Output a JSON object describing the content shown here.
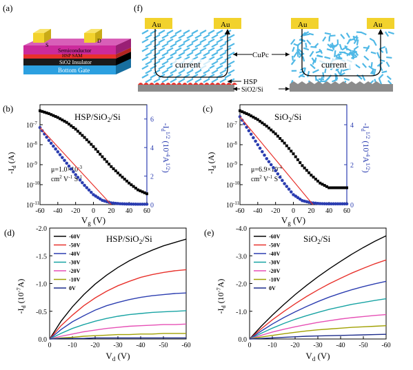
{
  "panel_a": {
    "letter": "(a)",
    "layers": [
      "Semiconductor",
      "HSP SAM",
      "SiO2 Insulator",
      "Bottom Gate"
    ],
    "source": "S",
    "drain": "D",
    "colors": {
      "semiconductor": "#cc2a9b",
      "sam": "#e0e0e0",
      "insulator": "#1a1a1a",
      "gate": "#2ca0e0",
      "electrode": "#f2d22c"
    }
  },
  "panel_f": {
    "letter": "(f)",
    "electrode": "Au",
    "current": "current",
    "cupc": "CuPc",
    "hsp": "HSP",
    "substrate": "SiO2/Si",
    "colors": {
      "molecule": "#4fb8e6",
      "hsp": "#e8312b",
      "substrate": "#8c8c8c",
      "electrode": "#f2d22c"
    }
  },
  "transfer_common": {
    "xlabel": "Vg (V)"
  },
  "transfer_panels": [
    {
      "letter": "(b)",
      "label": "HSP/SiO2/Si",
      "mu": "μ=1.0×10-3",
      "unit": "cm2 V-1 S-1",
      "yright_max": 6
    },
    {
      "letter": "(c)",
      "label": "SiO2/Si",
      "mu": "μ=6.9×10-4",
      "unit": "cm2 V-1 S-1",
      "yright_max": 4
    }
  ],
  "output_common": {
    "xlabel": "Vd (V)",
    "ylabel": "-Id (10-7A)"
  },
  "output_panels": [
    {
      "letter": "(d)",
      "label": "HSP/SiO2/Si",
      "ymax": 2.0
    },
    {
      "letter": "(e)",
      "label": "SiO2/Si",
      "ymax": 4.0
    }
  ],
  "chart_data": [
    {
      "type": "scatter",
      "panel": "(b)",
      "title": "HSP/SiO2/Si",
      "xlabel": "Vg (V)",
      "ylabel": "-Id (A)",
      "y2label": "-Id1/2 (10-4A1/2)",
      "xlim": [
        -60,
        60
      ],
      "ylim": [
        1e-11,
        1e-06
      ],
      "y2lim": [
        0,
        7
      ],
      "yscale": "log",
      "xticks": [
        -60,
        -40,
        -20,
        0,
        20,
        40,
        60
      ],
      "yticks": [
        "10-11",
        "10-10",
        "10-9",
        "10-8",
        "10-7"
      ],
      "y2ticks": [
        0,
        2,
        4,
        6
      ],
      "series": [
        {
          "name": "-Id",
          "axis": "left",
          "color": "#000000",
          "x": [
            -60,
            -50,
            -40,
            -30,
            -20,
            -10,
            0,
            10,
            20,
            30,
            40,
            50,
            60
          ],
          "y": [
            5e-07,
            3.6e-07,
            2.3e-07,
            1.3e-07,
            6e-08,
            2.3e-08,
            8e-09,
            2.5e-09,
            8e-10,
            3e-10,
            1.2e-10,
            5.5e-11,
            3.5e-11
          ]
        },
        {
          "name": "-Id1/2",
          "axis": "right",
          "color": "#2b3db0",
          "x": [
            -60,
            -50,
            -40,
            -30,
            -20,
            -10,
            0,
            10,
            20,
            30,
            40,
            50,
            60
          ],
          "y": [
            5.4,
            4.5,
            3.7,
            2.9,
            2.1,
            1.35,
            0.7,
            0.3,
            0.12,
            0.06,
            0.04,
            0.03,
            0.03
          ]
        },
        {
          "name": "fit",
          "axis": "right",
          "color": "#e8312b",
          "x": [
            -60,
            20
          ],
          "y": [
            5.4,
            0
          ]
        }
      ],
      "annotations": [
        "μ=1.0×10-3",
        "cm2 V-1 S-1"
      ]
    },
    {
      "type": "scatter",
      "panel": "(c)",
      "title": "SiO2/Si",
      "xlabel": "Vg (V)",
      "ylabel": "-Id (A)",
      "y2label": "-Id1/2 (10-4A1/2)",
      "xlim": [
        -60,
        60
      ],
      "ylim": [
        1e-11,
        1e-06
      ],
      "y2lim": [
        0,
        5
      ],
      "yscale": "log",
      "xticks": [
        -60,
        -40,
        -20,
        0,
        20,
        40,
        60
      ],
      "yticks": [
        "10-11",
        "10-10",
        "10-9",
        "10-8",
        "10-7"
      ],
      "y2ticks": [
        0,
        2,
        4
      ],
      "series": [
        {
          "name": "-Id",
          "axis": "left",
          "color": "#000000",
          "x": [
            -60,
            -50,
            -40,
            -30,
            -20,
            -10,
            0,
            10,
            20,
            30,
            40,
            50,
            60
          ],
          "y": [
            5e-07,
            3.2e-07,
            1.8e-07,
            8.5e-08,
            3.5e-08,
            1.2e-08,
            3.5e-09,
            9e-10,
            3e-10,
            1.2e-10,
            7e-11,
            7e-11,
            7e-11
          ]
        },
        {
          "name": "-Id1/2",
          "axis": "right",
          "color": "#2b3db0",
          "x": [
            -60,
            -50,
            -40,
            -30,
            -20,
            -10,
            0,
            10,
            20,
            30,
            40,
            50,
            60
          ],
          "y": [
            4.4,
            3.7,
            3.0,
            2.3,
            1.7,
            1.05,
            0.5,
            0.2,
            0.09,
            0.05,
            0.04,
            0.04,
            0.04
          ]
        },
        {
          "name": "fit",
          "axis": "right",
          "color": "#e8312b",
          "x": [
            -60,
            22
          ],
          "y": [
            4.4,
            0
          ]
        }
      ],
      "annotations": [
        "μ=6.9×10-4",
        "cm2 V-1 S-1"
      ]
    },
    {
      "type": "line",
      "panel": "(d)",
      "title": "HSP/SiO2/Si",
      "xlabel": "Vd (V)",
      "ylabel": "-Id (10-7A)",
      "xlim": [
        0,
        -60
      ],
      "ylim": [
        0,
        -2.0
      ],
      "xticks": [
        0,
        -10,
        -20,
        -30,
        -40,
        -50,
        -60
      ],
      "yticks": [
        "0.0",
        "-0.5",
        "-1.0",
        "-1.5",
        "-2.0"
      ],
      "legend": "top-left",
      "x": [
        0,
        -5,
        -10,
        -15,
        -20,
        -25,
        -30,
        -35,
        -40,
        -45,
        -50,
        -55,
        -60
      ],
      "series": [
        {
          "name": "-60V",
          "color": "#000000",
          "values": [
            0,
            -0.32,
            -0.58,
            -0.8,
            -0.99,
            -1.15,
            -1.29,
            -1.41,
            -1.51,
            -1.6,
            -1.68,
            -1.74,
            -1.8
          ]
        },
        {
          "name": "-50V",
          "color": "#e8312b",
          "values": [
            0,
            -0.24,
            -0.43,
            -0.6,
            -0.74,
            -0.86,
            -0.96,
            -1.04,
            -1.11,
            -1.16,
            -1.2,
            -1.23,
            -1.25
          ]
        },
        {
          "name": "-40V",
          "color": "#2b3db0",
          "values": [
            0,
            -0.17,
            -0.31,
            -0.42,
            -0.52,
            -0.6,
            -0.66,
            -0.71,
            -0.75,
            -0.78,
            -0.8,
            -0.82,
            -0.83
          ]
        },
        {
          "name": "-30V",
          "color": "#17a3a3",
          "values": [
            0,
            -0.1,
            -0.19,
            -0.26,
            -0.32,
            -0.37,
            -0.41,
            -0.44,
            -0.46,
            -0.48,
            -0.49,
            -0.5,
            -0.51
          ]
        },
        {
          "name": "-20V",
          "color": "#e64fb5",
          "values": [
            0,
            -0.05,
            -0.09,
            -0.13,
            -0.16,
            -0.19,
            -0.21,
            -0.23,
            -0.24,
            -0.25,
            -0.26,
            -0.26,
            -0.27
          ]
        },
        {
          "name": "-10V",
          "color": "#a0a000",
          "values": [
            0,
            -0.02,
            -0.03,
            -0.05,
            -0.06,
            -0.07,
            -0.08,
            -0.08,
            -0.09,
            -0.09,
            -0.1,
            -0.1,
            -0.1
          ]
        },
        {
          "name": "0V",
          "color": "#1a2a8a",
          "values": [
            0,
            -0.01,
            -0.01,
            -0.01,
            -0.02,
            -0.02,
            -0.02,
            -0.02,
            -0.02,
            -0.02,
            -0.02,
            -0.02,
            -0.02
          ]
        }
      ]
    },
    {
      "type": "line",
      "panel": "(e)",
      "title": "SiO2/Si",
      "xlabel": "Vd (V)",
      "ylabel": "-Id (10-7A)",
      "xlim": [
        0,
        -60
      ],
      "ylim": [
        0,
        -4.0
      ],
      "xticks": [
        0,
        -10,
        -20,
        -30,
        -40,
        -50,
        -60
      ],
      "yticks": [
        "0.0",
        "-1.0",
        "-2.0",
        "-3.0",
        "-4.0"
      ],
      "legend": "top-left",
      "x": [
        0,
        -5,
        -10,
        -15,
        -20,
        -25,
        -30,
        -35,
        -40,
        -45,
        -50,
        -55,
        -60
      ],
      "series": [
        {
          "name": "-60V",
          "color": "#000000",
          "values": [
            0,
            -0.45,
            -0.86,
            -1.24,
            -1.6,
            -1.93,
            -2.24,
            -2.53,
            -2.8,
            -3.06,
            -3.3,
            -3.52,
            -3.72
          ]
        },
        {
          "name": "-50V",
          "color": "#e8312b",
          "values": [
            0,
            -0.36,
            -0.69,
            -0.99,
            -1.27,
            -1.53,
            -1.77,
            -1.99,
            -2.19,
            -2.38,
            -2.55,
            -2.71,
            -2.85
          ]
        },
        {
          "name": "-40V",
          "color": "#2b3db0",
          "values": [
            0,
            -0.28,
            -0.54,
            -0.77,
            -0.98,
            -1.17,
            -1.35,
            -1.51,
            -1.65,
            -1.78,
            -1.89,
            -1.99,
            -2.08
          ]
        },
        {
          "name": "-30V",
          "color": "#17a3a3",
          "values": [
            0,
            -0.2,
            -0.39,
            -0.56,
            -0.71,
            -0.84,
            -0.96,
            -1.07,
            -1.16,
            -1.25,
            -1.32,
            -1.39,
            -1.45
          ]
        },
        {
          "name": "-20V",
          "color": "#e64fb5",
          "values": [
            0,
            -0.13,
            -0.25,
            -0.35,
            -0.44,
            -0.52,
            -0.6,
            -0.66,
            -0.72,
            -0.77,
            -0.81,
            -0.85,
            -0.88
          ]
        },
        {
          "name": "-10V",
          "color": "#a0a000",
          "values": [
            0,
            -0.07,
            -0.13,
            -0.19,
            -0.24,
            -0.29,
            -0.33,
            -0.36,
            -0.39,
            -0.42,
            -0.44,
            -0.46,
            -0.48
          ]
        },
        {
          "name": "0V",
          "color": "#1a2a8a",
          "values": [
            0,
            -0.02,
            -0.04,
            -0.06,
            -0.08,
            -0.1,
            -0.11,
            -0.12,
            -0.13,
            -0.14,
            -0.15,
            -0.16,
            -0.17
          ]
        }
      ]
    }
  ]
}
